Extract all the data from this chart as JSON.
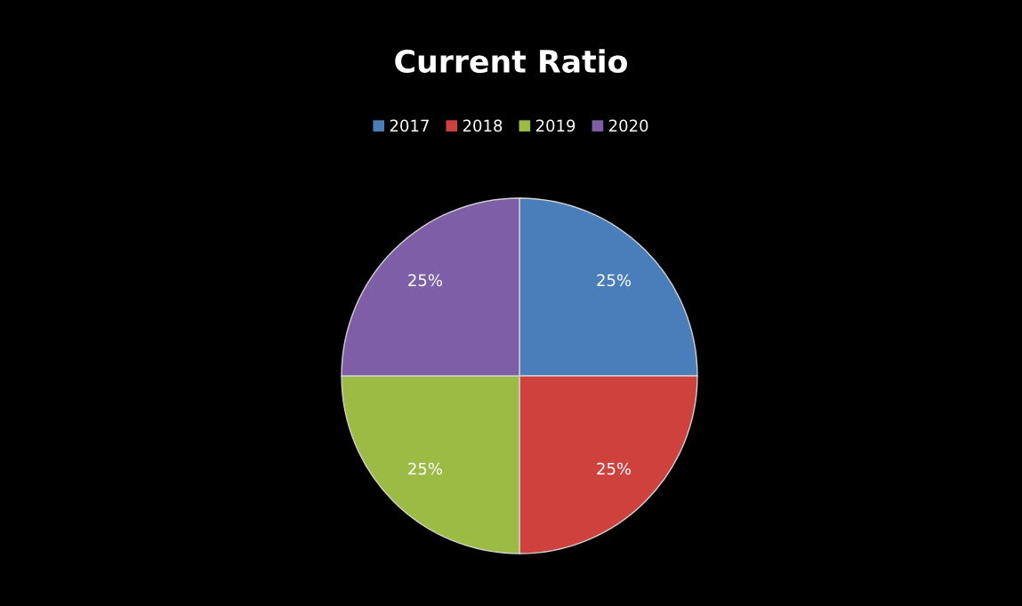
{
  "chart_data": {
    "type": "pie",
    "title": "Current Ratio",
    "categories": [
      "2017",
      "2018",
      "2019",
      "2020"
    ],
    "values": [
      25,
      25,
      25,
      25
    ],
    "colors": [
      "#4a7ebb",
      "#cf413c",
      "#9cbb45",
      "#7e5ea7"
    ],
    "value_labels": [
      "25%",
      "25%",
      "25%",
      "25%"
    ],
    "legend": "top"
  }
}
